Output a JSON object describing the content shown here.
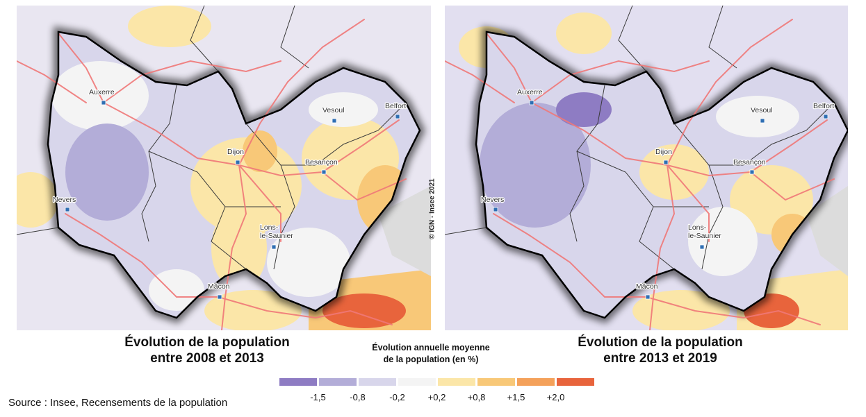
{
  "maps": [
    {
      "title_line1": "Évolution de la population",
      "title_line2": "entre 2008 et 2013",
      "cities": [
        {
          "name": "Auxerre",
          "label_lines": [
            "Auxerre"
          ]
        },
        {
          "name": "Vesoul",
          "label_lines": [
            "Vesoul"
          ]
        },
        {
          "name": "Belfort",
          "label_lines": [
            "Belfort"
          ]
        },
        {
          "name": "Dijon",
          "label_lines": [
            "Dijon"
          ]
        },
        {
          "name": "Besançon",
          "label_lines": [
            "Besançon"
          ]
        },
        {
          "name": "Nevers",
          "label_lines": [
            "Nevers"
          ]
        },
        {
          "name": "Lons-le-Saunier",
          "label_lines": [
            "Lons-",
            "le-Saunier"
          ]
        },
        {
          "name": "Mâcon",
          "label_lines": [
            "Mâcon"
          ]
        }
      ]
    },
    {
      "title_line1": "Évolution de la population",
      "title_line2": "entre 2013 et 2019",
      "cities": [
        {
          "name": "Auxerre",
          "label_lines": [
            "Auxerre"
          ]
        },
        {
          "name": "Vesoul",
          "label_lines": [
            "Vesoul"
          ]
        },
        {
          "name": "Belfort",
          "label_lines": [
            "Belfort"
          ]
        },
        {
          "name": "Dijon",
          "label_lines": [
            "Dijon"
          ]
        },
        {
          "name": "Besançon",
          "label_lines": [
            "Besançon"
          ]
        },
        {
          "name": "Nevers",
          "label_lines": [
            "Nevers"
          ]
        },
        {
          "name": "Lons-le-Saunier",
          "label_lines": [
            "Lons-",
            "le-Saunier"
          ]
        },
        {
          "name": "Mâcon",
          "label_lines": [
            "Mâcon"
          ]
        }
      ]
    }
  ],
  "credit": "© IGN - Insee 2021",
  "legend": {
    "title_line1": "Évolution annuelle moyenne",
    "title_line2": "de la population (en %)",
    "colors": [
      "#8e7cc3",
      "#b3add8",
      "#d8d6eb",
      "#f4f4f4",
      "#fbe6a8",
      "#f8c878",
      "#f4a15a",
      "#e8643c"
    ],
    "ticks": [
      "-1,5",
      "-0,8",
      "-0,2",
      "+0,2",
      "+0,8",
      "+1,5",
      "+2,0"
    ]
  },
  "source": "Source : Insee, Recensements de la population",
  "colors": {
    "outside_region": "#dcdcdc",
    "roads": "#f07878",
    "department_borders": "#3a3a3a",
    "region_border": "#000000",
    "city_marker": "#2f6fb3"
  }
}
